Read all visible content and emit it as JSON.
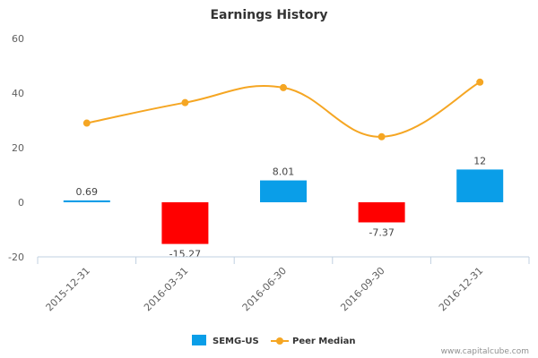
{
  "chart_data": {
    "type": "bar+line",
    "title": "Earnings History",
    "categories": [
      "2015-12-31",
      "2016-03-31",
      "2016-06-30",
      "2016-09-30",
      "2016-12-31"
    ],
    "series": [
      {
        "name": "SEMG-US",
        "type": "bar",
        "color": "#0a9ee8",
        "negative_color": "#ff0000",
        "values": [
          0.69,
          -15.27,
          8.01,
          -7.37,
          12
        ],
        "labels": [
          "0.69",
          "-15.27",
          "8.01",
          "-7.37",
          "12"
        ]
      },
      {
        "name": "Peer Median",
        "type": "line",
        "color": "#f5a623",
        "values": [
          29,
          36.5,
          42,
          24,
          44
        ]
      }
    ],
    "yaxis": {
      "min": -20,
      "max": 60,
      "ticks": [
        60,
        40,
        20,
        0,
        -20
      ],
      "tick_labels": [
        "60",
        "40",
        "20",
        "0",
        "-20"
      ]
    },
    "grid": false,
    "legend_position": "bottom-center"
  },
  "credit": "www.capitalcube.com"
}
